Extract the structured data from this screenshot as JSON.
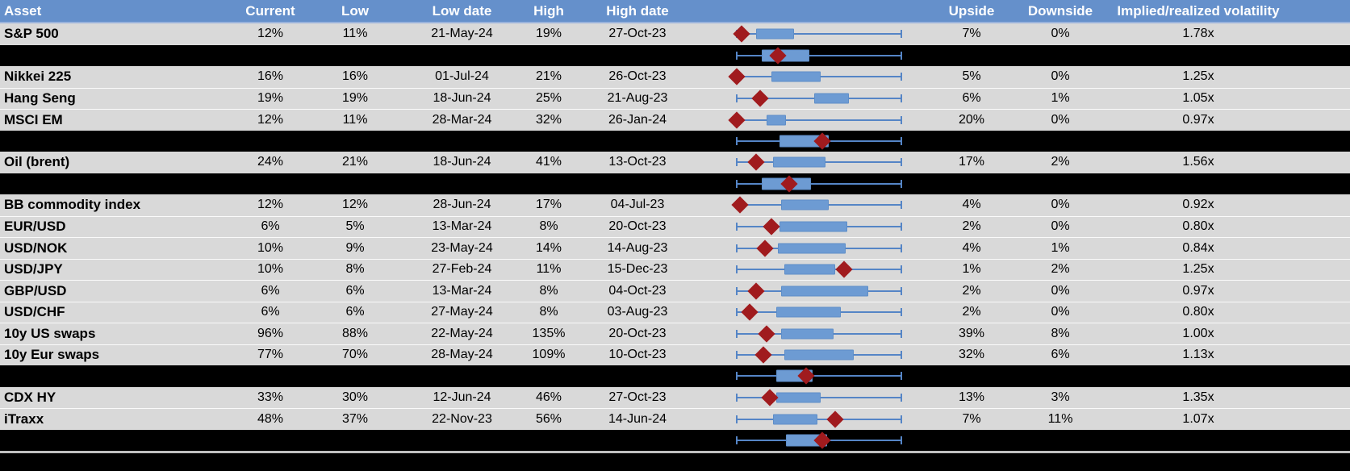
{
  "header": {
    "asset": "Asset",
    "current": "Current",
    "low": "Low",
    "low_date": "Low date",
    "high": "High",
    "high_date": "High date",
    "upside": "Upside",
    "downside": "Downside",
    "vol": "Implied/realized volatility"
  },
  "colors": {
    "header_bg": "#6590CB",
    "header_text": "#FFFFFF",
    "row_bg": "#D9D9D9",
    "separator_row_bg": "#000000",
    "box_fill": "#6D9BD3",
    "whisker": "#5585C6",
    "diamond": "#A01B1E"
  },
  "chart_data": {
    "type": "table",
    "embedded_chart_type": "horizontal box-and-whisker with current-value diamond marker",
    "plot_scale_note": "box and diamond positions are fractions 0-1 of the whisker span (52w low to high)",
    "rows": [
      {
        "kind": "data",
        "asset": "S&P 500",
        "current": "12%",
        "low": "11%",
        "low_date": "21-May-24",
        "high": "19%",
        "high_date": "27-Oct-23",
        "upside": "7%",
        "downside": "0%",
        "vol": "1.78x",
        "plot": {
          "whisker": [
            0,
            1
          ],
          "box": [
            0.12,
            0.35
          ],
          "diamond": 0.03
        }
      },
      {
        "kind": "summary",
        "plot": {
          "whisker": [
            0,
            1
          ],
          "box": [
            0.15,
            0.44
          ],
          "diamond": 0.25
        }
      },
      {
        "kind": "data",
        "asset": "Nikkei 225",
        "current": "16%",
        "low": "16%",
        "low_date": "01-Jul-24",
        "high": "21%",
        "high_date": "26-Oct-23",
        "upside": "5%",
        "downside": "0%",
        "vol": "1.25x",
        "plot": {
          "whisker": [
            0,
            1
          ],
          "box": [
            0.21,
            0.51
          ],
          "diamond": 0.0
        }
      },
      {
        "kind": "data",
        "asset": "Hang Seng",
        "current": "19%",
        "low": "19%",
        "low_date": "18-Jun-24",
        "high": "25%",
        "high_date": "21-Aug-23",
        "upside": "6%",
        "downside": "1%",
        "vol": "1.05x",
        "plot": {
          "whisker": [
            0,
            1
          ],
          "box": [
            0.47,
            0.68
          ],
          "diamond": 0.14
        }
      },
      {
        "kind": "data",
        "asset": "MSCI EM",
        "current": "12%",
        "low": "11%",
        "low_date": "28-Mar-24",
        "high": "32%",
        "high_date": "26-Jan-24",
        "upside": "20%",
        "downside": "0%",
        "vol": "0.97x",
        "plot": {
          "whisker": [
            0,
            1
          ],
          "box": [
            0.18,
            0.3
          ],
          "diamond": 0.0
        }
      },
      {
        "kind": "summary",
        "plot": {
          "whisker": [
            0,
            1
          ],
          "box": [
            0.26,
            0.56
          ],
          "diamond": 0.52
        }
      },
      {
        "kind": "data",
        "asset": "Oil (brent)",
        "current": "24%",
        "low": "21%",
        "low_date": "18-Jun-24",
        "high": "41%",
        "high_date": "13-Oct-23",
        "upside": "17%",
        "downside": "2%",
        "vol": "1.56x",
        "plot": {
          "whisker": [
            0,
            1
          ],
          "box": [
            0.22,
            0.54
          ],
          "diamond": 0.12
        }
      },
      {
        "kind": "summary",
        "plot": {
          "whisker": [
            0,
            1
          ],
          "box": [
            0.15,
            0.45
          ],
          "diamond": 0.32
        }
      },
      {
        "kind": "data",
        "asset": "BB commodity index",
        "current": "12%",
        "low": "12%",
        "low_date": "28-Jun-24",
        "high": "17%",
        "high_date": "04-Jul-23",
        "upside": "4%",
        "downside": "0%",
        "vol": "0.92x",
        "plot": {
          "whisker": [
            0,
            1
          ],
          "box": [
            0.27,
            0.56
          ],
          "diamond": 0.02
        }
      },
      {
        "kind": "data",
        "asset": "EUR/USD",
        "current": "6%",
        "low": "5%",
        "low_date": "13-Mar-24",
        "high": "8%",
        "high_date": "20-Oct-23",
        "upside": "2%",
        "downside": "0%",
        "vol": "0.80x",
        "plot": {
          "whisker": [
            0,
            1
          ],
          "box": [
            0.26,
            0.67
          ],
          "diamond": 0.21
        }
      },
      {
        "kind": "data",
        "asset": "USD/NOK",
        "current": "10%",
        "low": "9%",
        "low_date": "23-May-24",
        "high": "14%",
        "high_date": "14-Aug-23",
        "upside": "4%",
        "downside": "1%",
        "vol": "0.84x",
        "plot": {
          "whisker": [
            0,
            1
          ],
          "box": [
            0.25,
            0.66
          ],
          "diamond": 0.17
        }
      },
      {
        "kind": "data",
        "asset": "USD/JPY",
        "current": "10%",
        "low": "8%",
        "low_date": "27-Feb-24",
        "high": "11%",
        "high_date": "15-Dec-23",
        "upside": "1%",
        "downside": "2%",
        "vol": "1.25x",
        "plot": {
          "whisker": [
            0,
            1
          ],
          "box": [
            0.29,
            0.6
          ],
          "diamond": 0.65
        }
      },
      {
        "kind": "data",
        "asset": "GBP/USD",
        "current": "6%",
        "low": "6%",
        "low_date": "13-Mar-24",
        "high": "8%",
        "high_date": "04-Oct-23",
        "upside": "2%",
        "downside": "0%",
        "vol": "0.97x",
        "plot": {
          "whisker": [
            0,
            1
          ],
          "box": [
            0.27,
            0.8
          ],
          "diamond": 0.12
        }
      },
      {
        "kind": "data",
        "asset": "USD/CHF",
        "current": "6%",
        "low": "6%",
        "low_date": "27-May-24",
        "high": "8%",
        "high_date": "03-Aug-23",
        "upside": "2%",
        "downside": "0%",
        "vol": "0.80x",
        "plot": {
          "whisker": [
            0,
            1
          ],
          "box": [
            0.24,
            0.63
          ],
          "diamond": 0.08
        }
      },
      {
        "kind": "data",
        "asset": "10y US swaps",
        "current": "96%",
        "low": "88%",
        "low_date": "22-May-24",
        "high": "135%",
        "high_date": "20-Oct-23",
        "upside": "39%",
        "downside": "8%",
        "vol": "1.00x",
        "plot": {
          "whisker": [
            0,
            1
          ],
          "box": [
            0.27,
            0.59
          ],
          "diamond": 0.18
        }
      },
      {
        "kind": "data",
        "asset": "10y Eur swaps",
        "current": "77%",
        "low": "70%",
        "low_date": "28-May-24",
        "high": "109%",
        "high_date": "10-Oct-23",
        "upside": "32%",
        "downside": "6%",
        "vol": "1.13x",
        "plot": {
          "whisker": [
            0,
            1
          ],
          "box": [
            0.29,
            0.71
          ],
          "diamond": 0.16
        }
      },
      {
        "kind": "summary",
        "plot": {
          "whisker": [
            0,
            1
          ],
          "box": [
            0.24,
            0.46
          ],
          "diamond": 0.42
        }
      },
      {
        "kind": "data",
        "asset": "CDX HY",
        "current": "33%",
        "low": "30%",
        "low_date": "12-Jun-24",
        "high": "46%",
        "high_date": "27-Oct-23",
        "upside": "13%",
        "downside": "3%",
        "vol": "1.35x",
        "plot": {
          "whisker": [
            0,
            1
          ],
          "box": [
            0.24,
            0.51
          ],
          "diamond": 0.2
        }
      },
      {
        "kind": "data",
        "asset": "iTraxx",
        "current": "48%",
        "low": "37%",
        "low_date": "22-Nov-23",
        "high": "56%",
        "high_date": "14-Jun-24",
        "upside": "7%",
        "downside": "11%",
        "vol": "1.07x",
        "plot": {
          "whisker": [
            0,
            1
          ],
          "box": [
            0.22,
            0.49
          ],
          "diamond": 0.6
        }
      },
      {
        "kind": "summary",
        "plot": {
          "whisker": [
            0,
            1
          ],
          "box": [
            0.3,
            0.55
          ],
          "diamond": 0.52
        }
      }
    ]
  }
}
